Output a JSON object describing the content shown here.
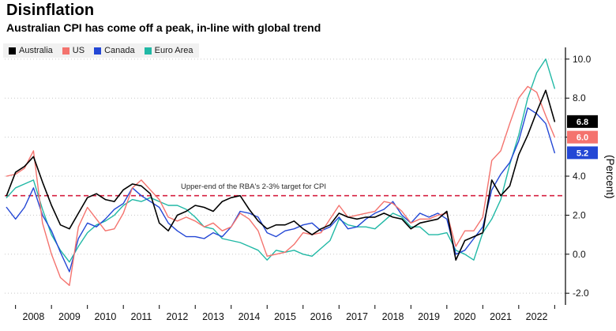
{
  "header": {
    "title": "Disinflation",
    "subtitle": "Australian CPI has come off a peak, in-line with global trend"
  },
  "colors": {
    "australia": "#000000",
    "us": "#f4736e",
    "canada": "#2347d5",
    "euro_area": "#20b8a5",
    "target_line": "#d62040",
    "grid": "#c8c8c8",
    "axis": "#000000"
  },
  "chart_data": {
    "type": "line",
    "title": "Disinflation",
    "subtitle": "Australian CPI has come off a peak, in-line with global trend",
    "ylabel": "(Percent)",
    "xlim": [
      2007.7,
      2023.3
    ],
    "ylim": [
      -2.6,
      10.6
    ],
    "y_ticks": [
      -2,
      0,
      2,
      4,
      6,
      8,
      10
    ],
    "y_tick_labels": [
      "-2.0",
      "0.0",
      "2.0",
      "4.0",
      "6.0",
      "8.0",
      "10.0"
    ],
    "x_tick_years": [
      2008,
      2009,
      2010,
      2011,
      2012,
      2013,
      2014,
      2015,
      2016,
      2017,
      2018,
      2019,
      2020,
      2021,
      2022
    ],
    "grid": true,
    "legend_position": "top-left",
    "target_line": {
      "value": 3.0,
      "label": "Upper-end of the RBA's 2-3% target for CPI"
    },
    "x": [
      2007.75,
      2008,
      2008.25,
      2008.5,
      2008.75,
      2009,
      2009.25,
      2009.5,
      2009.75,
      2010,
      2010.25,
      2010.5,
      2010.75,
      2011,
      2011.25,
      2011.5,
      2011.75,
      2012,
      2012.25,
      2012.5,
      2012.75,
      2013,
      2013.25,
      2013.5,
      2013.75,
      2014,
      2014.25,
      2014.5,
      2014.75,
      2015,
      2015.25,
      2015.5,
      2015.75,
      2016,
      2016.25,
      2016.5,
      2016.75,
      2017,
      2017.25,
      2017.5,
      2017.75,
      2018,
      2018.25,
      2018.5,
      2018.75,
      2019,
      2019.25,
      2019.5,
      2019.75,
      2020,
      2020.25,
      2020.5,
      2020.75,
      2021,
      2021.25,
      2021.5,
      2021.75,
      2022,
      2022.25,
      2022.5,
      2022.75,
      2023
    ],
    "series": [
      {
        "name": "Australia",
        "color_key": "australia",
        "values": [
          3.0,
          4.2,
          4.5,
          5.0,
          3.7,
          2.5,
          1.5,
          1.3,
          2.1,
          2.9,
          3.1,
          2.8,
          2.7,
          3.3,
          3.6,
          3.5,
          3.1,
          1.6,
          1.2,
          2.0,
          2.2,
          2.5,
          2.4,
          2.2,
          2.7,
          2.9,
          3.0,
          2.3,
          1.7,
          1.3,
          1.5,
          1.5,
          1.7,
          1.3,
          1.0,
          1.3,
          1.5,
          2.1,
          1.9,
          1.8,
          1.9,
          1.9,
          2.1,
          1.9,
          1.8,
          1.3,
          1.6,
          1.7,
          1.8,
          2.2,
          -0.3,
          0.7,
          0.9,
          1.1,
          3.8,
          3.0,
          3.5,
          5.1,
          6.1,
          7.3,
          8.4,
          6.8
        ]
      },
      {
        "name": "US",
        "color_key": "us",
        "values": [
          4.0,
          4.1,
          4.4,
          5.3,
          1.6,
          0.0,
          -1.2,
          -1.6,
          1.4,
          2.4,
          1.8,
          1.2,
          1.3,
          2.1,
          3.4,
          3.8,
          3.3,
          2.8,
          1.9,
          1.7,
          1.9,
          1.7,
          1.4,
          1.6,
          1.2,
          1.4,
          2.1,
          1.8,
          1.2,
          -0.1,
          0.0,
          0.1,
          0.5,
          1.1,
          1.0,
          1.1,
          1.8,
          2.5,
          1.9,
          2.0,
          2.1,
          2.2,
          2.7,
          2.6,
          2.2,
          1.6,
          1.8,
          1.8,
          2.0,
          2.1,
          0.4,
          1.2,
          1.2,
          1.9,
          4.8,
          5.3,
          6.7,
          8.0,
          8.6,
          8.3,
          7.1,
          6.0
        ]
      },
      {
        "name": "Canada",
        "color_key": "canada",
        "values": [
          2.4,
          1.8,
          2.4,
          3.4,
          2.0,
          1.2,
          0.1,
          -0.9,
          0.8,
          1.6,
          1.4,
          1.8,
          2.3,
          2.6,
          3.4,
          3.0,
          2.7,
          2.4,
          1.6,
          1.2,
          0.9,
          0.9,
          0.8,
          1.1,
          0.9,
          1.4,
          2.2,
          2.1,
          1.9,
          1.1,
          0.9,
          1.2,
          1.3,
          1.5,
          1.6,
          1.2,
          1.4,
          1.9,
          1.3,
          1.4,
          1.8,
          2.1,
          2.3,
          2.7,
          2.0,
          1.6,
          2.1,
          1.9,
          2.1,
          1.8,
          0.0,
          0.2,
          0.8,
          1.4,
          3.3,
          4.1,
          4.7,
          5.8,
          7.5,
          7.2,
          6.7,
          5.2
        ]
      },
      {
        "name": "Euro Area",
        "color_key": "euro_area",
        "values": [
          2.9,
          3.4,
          3.6,
          3.8,
          2.3,
          1.0,
          0.2,
          -0.4,
          0.4,
          1.1,
          1.5,
          1.7,
          2.0,
          2.5,
          2.8,
          2.7,
          2.9,
          2.7,
          2.5,
          2.5,
          2.3,
          1.9,
          1.4,
          1.3,
          0.8,
          0.7,
          0.6,
          0.4,
          0.2,
          -0.3,
          0.2,
          0.1,
          0.2,
          0.0,
          -0.1,
          0.3,
          0.7,
          1.8,
          1.5,
          1.4,
          1.4,
          1.3,
          1.7,
          2.1,
          1.9,
          1.4,
          1.4,
          1.0,
          1.0,
          1.1,
          0.2,
          0.0,
          -0.3,
          1.1,
          1.8,
          2.8,
          4.6,
          6.1,
          8.0,
          9.3,
          10.0,
          8.5
        ]
      }
    ],
    "end_labels": [
      {
        "text": "6.8",
        "value": 6.8,
        "color_key": "australia"
      },
      {
        "text": "6.0",
        "value": 6.0,
        "color_key": "us"
      },
      {
        "text": "5.2",
        "value": 5.2,
        "color_key": "canada"
      }
    ]
  }
}
